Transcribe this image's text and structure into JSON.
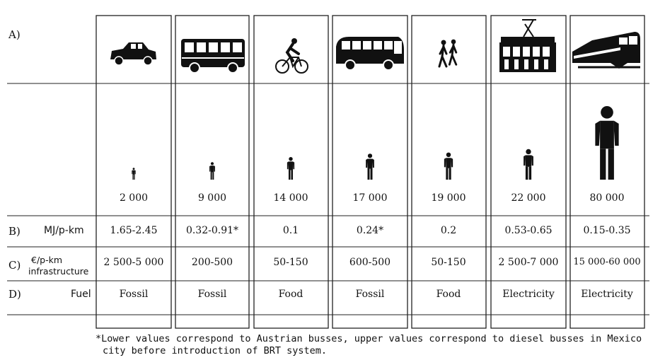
{
  "row_labels": {
    "a": "A)",
    "b": "B)",
    "c": "C)",
    "d": "D)"
  },
  "metrics": {
    "energy": "MJ/p-km",
    "infra_unit": "€/p-km",
    "infra_word": "infrastructure",
    "fuel": "Fuel"
  },
  "modes": [
    {
      "icon": "car-icon",
      "capacity": "2 000",
      "energy": "1.65-2.45",
      "infrastructure": "2 500-5 000",
      "fuel": "Fossil"
    },
    {
      "icon": "bus-icon",
      "capacity": "9 000",
      "energy": "0.32-0.91*",
      "infrastructure": "200-500",
      "fuel": "Fossil"
    },
    {
      "icon": "bicycle-icon",
      "capacity": "14 000",
      "energy": "0.1",
      "infrastructure": "50-150",
      "fuel": "Food"
    },
    {
      "icon": "coach-bus-icon",
      "capacity": "17 000",
      "energy": "0.24*",
      "infrastructure": "600-500",
      "fuel": "Fossil"
    },
    {
      "icon": "pedestrians-icon",
      "capacity": "19 000",
      "energy": "0.2",
      "infrastructure": "50-150",
      "fuel": "Food"
    },
    {
      "icon": "tram-icon",
      "capacity": "22 000",
      "energy": "0.53-0.65",
      "infrastructure": "2 500-7 000",
      "fuel": "Electricity"
    },
    {
      "icon": "train-icon",
      "capacity": "80 000",
      "energy": "0.15-0.35",
      "infrastructure": "15 000-60 000",
      "fuel": "Electricity"
    }
  ],
  "capacity_scale": [
    0.105,
    0.155,
    0.2,
    0.23,
    0.24,
    0.27,
    0.65
  ],
  "footnote": {
    "line1": "*Lower values correspond to Austrian busses, upper values correspond to diesel busses in Mexico",
    "line2": "city before introduction of BRT system."
  }
}
